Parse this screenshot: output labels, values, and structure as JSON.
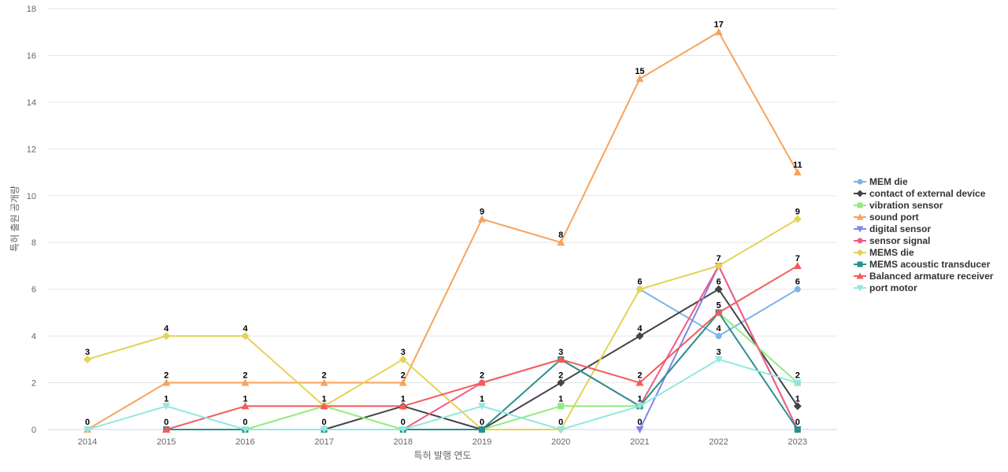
{
  "chart_data": {
    "type": "line",
    "xlabel": "특허 발행 연도",
    "ylabel": "특허 출원 공개량",
    "x": [
      "2014",
      "2015",
      "2016",
      "2017",
      "2018",
      "2019",
      "2020",
      "2021",
      "2022",
      "2023"
    ],
    "ylim": [
      0,
      18
    ],
    "yticks": [
      0,
      2,
      4,
      6,
      8,
      10,
      12,
      14,
      16,
      18
    ],
    "grid": true,
    "legend_position": "right",
    "series": [
      {
        "name": "MEM die",
        "color": "#7cb5ec",
        "marker": "circle",
        "values": [
          null,
          null,
          null,
          null,
          null,
          null,
          null,
          6,
          4,
          6
        ]
      },
      {
        "name": "contact of external device",
        "color": "#434348",
        "marker": "diamond",
        "values": [
          null,
          null,
          null,
          0,
          1,
          0,
          2,
          4,
          6,
          1
        ]
      },
      {
        "name": "vibration sensor",
        "color": "#90ed7d",
        "marker": "square",
        "values": [
          null,
          null,
          0,
          1,
          0,
          0,
          1,
          1,
          5,
          2
        ]
      },
      {
        "name": "sound port",
        "color": "#f7a35c",
        "marker": "triangle",
        "values": [
          0,
          2,
          2,
          2,
          2,
          9,
          8,
          15,
          17,
          11
        ]
      },
      {
        "name": "digital sensor",
        "color": "#8085e9",
        "marker": "triangle-down",
        "values": [
          null,
          null,
          null,
          null,
          null,
          null,
          null,
          0,
          7,
          0
        ]
      },
      {
        "name": "sensor signal",
        "color": "#f15c80",
        "marker": "circle",
        "values": [
          null,
          null,
          null,
          null,
          0,
          2,
          3,
          1,
          7,
          0
        ]
      },
      {
        "name": "MEMS die",
        "color": "#e4d354",
        "marker": "diamond",
        "values": [
          3,
          4,
          4,
          1,
          3,
          0,
          0,
          6,
          7,
          9
        ]
      },
      {
        "name": "MEMS acoustic transducer",
        "color": "#2b908f",
        "marker": "square",
        "values": [
          null,
          0,
          0,
          0,
          0,
          0,
          3,
          1,
          5,
          0
        ]
      },
      {
        "name": "Balanced armature receiver",
        "color": "#f45b5b",
        "marker": "triangle",
        "values": [
          null,
          0,
          1,
          1,
          1,
          2,
          3,
          2,
          5,
          7
        ]
      },
      {
        "name": "port motor",
        "color": "#91e8e1",
        "marker": "triangle-down",
        "values": [
          0,
          1,
          0,
          0,
          0,
          1,
          0,
          1,
          3,
          2
        ]
      }
    ]
  }
}
